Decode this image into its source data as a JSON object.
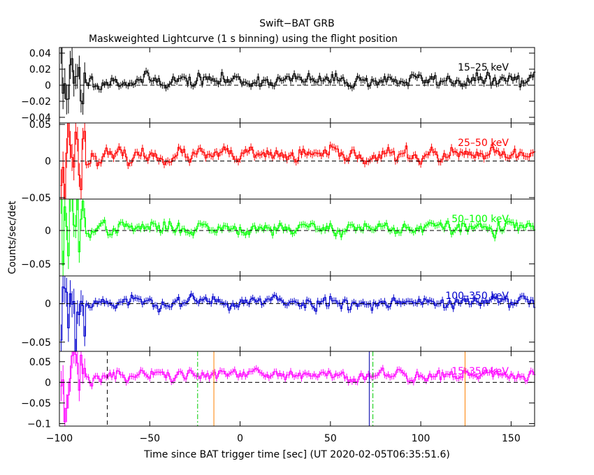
{
  "chart_data": {
    "type": "line",
    "title": "Swift−BAT GRB",
    "subtitle": "Maskweighted Lightcurve (1 s binning) using the flight position",
    "xlabel": "Time since BAT trigger time [sec] (UT 2020-02-05T06:35:51.6)",
    "ylabel": "Counts/sec/det",
    "xlim": [
      -100,
      163
    ],
    "xticks": [
      -100,
      -50,
      0,
      50,
      100,
      150
    ],
    "xtick_labels": [
      "−100",
      "−50",
      "0",
      "50",
      "100",
      "150"
    ],
    "grid": false,
    "panels": [
      {
        "name": "15–25 keV",
        "color": "#000000",
        "ylim": [
          -0.047,
          0.047
        ],
        "yticks": [
          -0.04,
          -0.02,
          0,
          0.02,
          0.04
        ],
        "ytick_labels": [
          "−0.04",
          "−0.02",
          "0",
          "0.02",
          "0.04"
        ],
        "early_noise": 0.028,
        "late_noise": 0.006,
        "level": 0.006,
        "seed": 11
      },
      {
        "name": "25–50 keV",
        "color": "#ff0000",
        "ylim": [
          -0.052,
          0.052
        ],
        "yticks": [
          -0.05,
          0,
          0.05
        ],
        "ytick_labels": [
          "−0.05",
          "0",
          "0.05"
        ],
        "early_noise": 0.03,
        "late_noise": 0.007,
        "level": 0.007,
        "seed": 23
      },
      {
        "name": "50–100 keV",
        "color": "#00ff00",
        "ylim": [
          -0.068,
          0.047
        ],
        "yticks": [
          -0.05,
          0
        ],
        "ytick_labels": [
          "−0.05",
          "0"
        ],
        "early_noise": 0.03,
        "late_noise": 0.007,
        "level": 0.004,
        "seed": 37
      },
      {
        "name": "100–350 keV",
        "color": "#0000cc",
        "ylim": [
          -0.062,
          0.036
        ],
        "yticks": [
          -0.05,
          0
        ],
        "ytick_labels": [
          "−0.05",
          "0"
        ],
        "early_noise": 0.028,
        "late_noise": 0.006,
        "level": 0.002,
        "seed": 53
      },
      {
        "name": "15–350 keV",
        "color": "#ff00ff",
        "ylim": [
          -0.106,
          0.075
        ],
        "yticks": [
          -0.1,
          -0.05,
          0,
          0.05
        ],
        "ytick_labels": [
          "−0.1",
          "−0.05",
          "0",
          "0.05"
        ],
        "early_noise": 0.05,
        "late_noise": 0.011,
        "level": 0.017,
        "seed": 71
      }
    ],
    "markers": [
      {
        "x": -73.5,
        "color": "#000000",
        "style": "dashed"
      },
      {
        "x": -23.5,
        "color": "#00cc00",
        "style": "dashdot"
      },
      {
        "x": -14.5,
        "color": "#ff8000",
        "style": "solid"
      },
      {
        "x": 71.5,
        "color": "#0000aa",
        "style": "solid"
      },
      {
        "x": 73.5,
        "color": "#00cc00",
        "style": "dashdot"
      },
      {
        "x": 124.5,
        "color": "#ff8000",
        "style": "solid"
      }
    ],
    "series_start": -99,
    "series_end": 163,
    "bin_width": 1
  }
}
